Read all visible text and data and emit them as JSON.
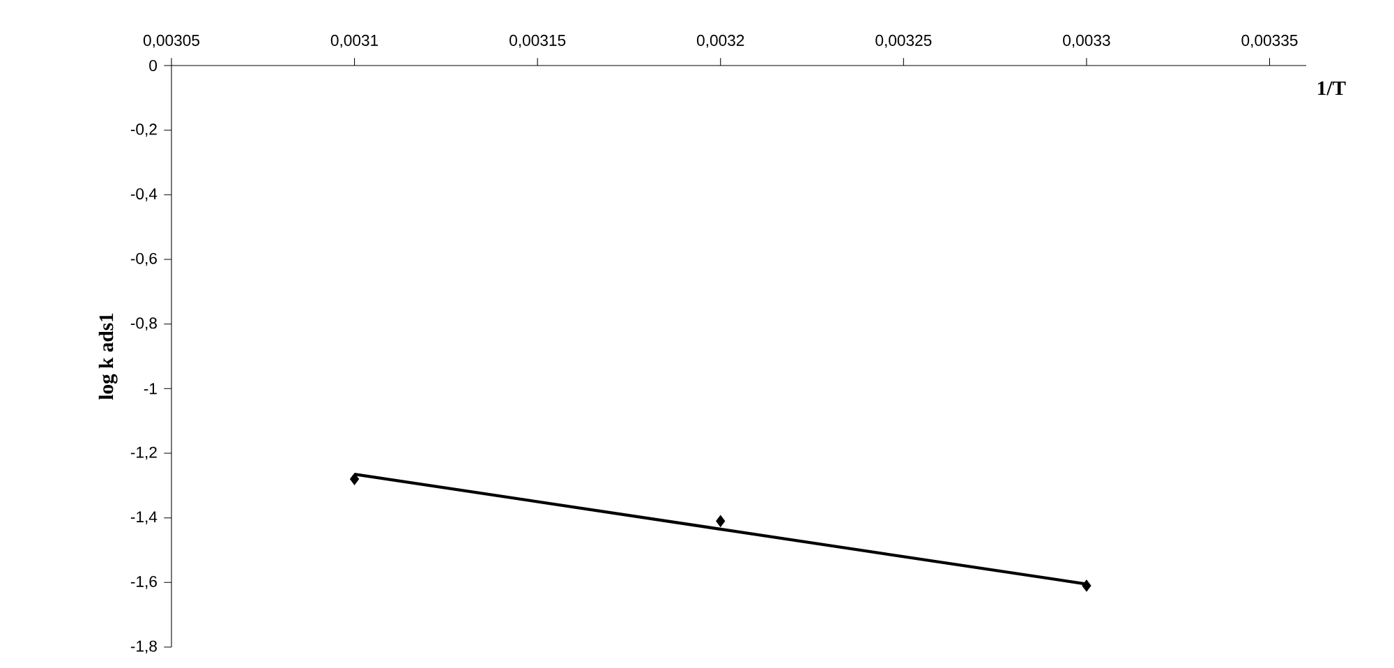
{
  "chart_data": {
    "type": "scatter",
    "xlabel": "1/T",
    "ylabel": "log k ads1",
    "marker": "diamond",
    "grid": false,
    "xlim": [
      0.00305,
      0.00336
    ],
    "ylim": [
      -1.8,
      0
    ],
    "xticks": [
      {
        "value": 0.00305,
        "label": "0,00305"
      },
      {
        "value": 0.0031,
        "label": "0,0031"
      },
      {
        "value": 0.00315,
        "label": "0,00315"
      },
      {
        "value": 0.0032,
        "label": "0,0032"
      },
      {
        "value": 0.00325,
        "label": "0,00325"
      },
      {
        "value": 0.0033,
        "label": "0,0033"
      },
      {
        "value": 0.00335,
        "label": "0,00335"
      }
    ],
    "yticks": [
      0,
      {
        "value": -0.2,
        "label": "-0,2"
      },
      {
        "value": -0.4,
        "label": "-0,4"
      },
      {
        "value": -0.6,
        "label": "-0,6"
      },
      {
        "value": -0.8,
        "label": "-0,8"
      },
      -1,
      {
        "value": -1.2,
        "label": "-1,2"
      },
      {
        "value": -1.4,
        "label": "-1,4"
      },
      {
        "value": -1.6,
        "label": "-1,6"
      },
      {
        "value": -1.8,
        "label": "-1,8"
      }
    ],
    "series": [
      {
        "color": "#000000",
        "x": [
          0.0031,
          0.0032,
          0.0033
        ],
        "values": [
          -1.28,
          -1.41,
          -1.61
        ]
      },
      {
        "type": "line",
        "marker": "none",
        "color": "#000000",
        "x": [
          0.0031,
          0.0033
        ],
        "values": [
          -1.265,
          -1.605
        ]
      }
    ]
  }
}
